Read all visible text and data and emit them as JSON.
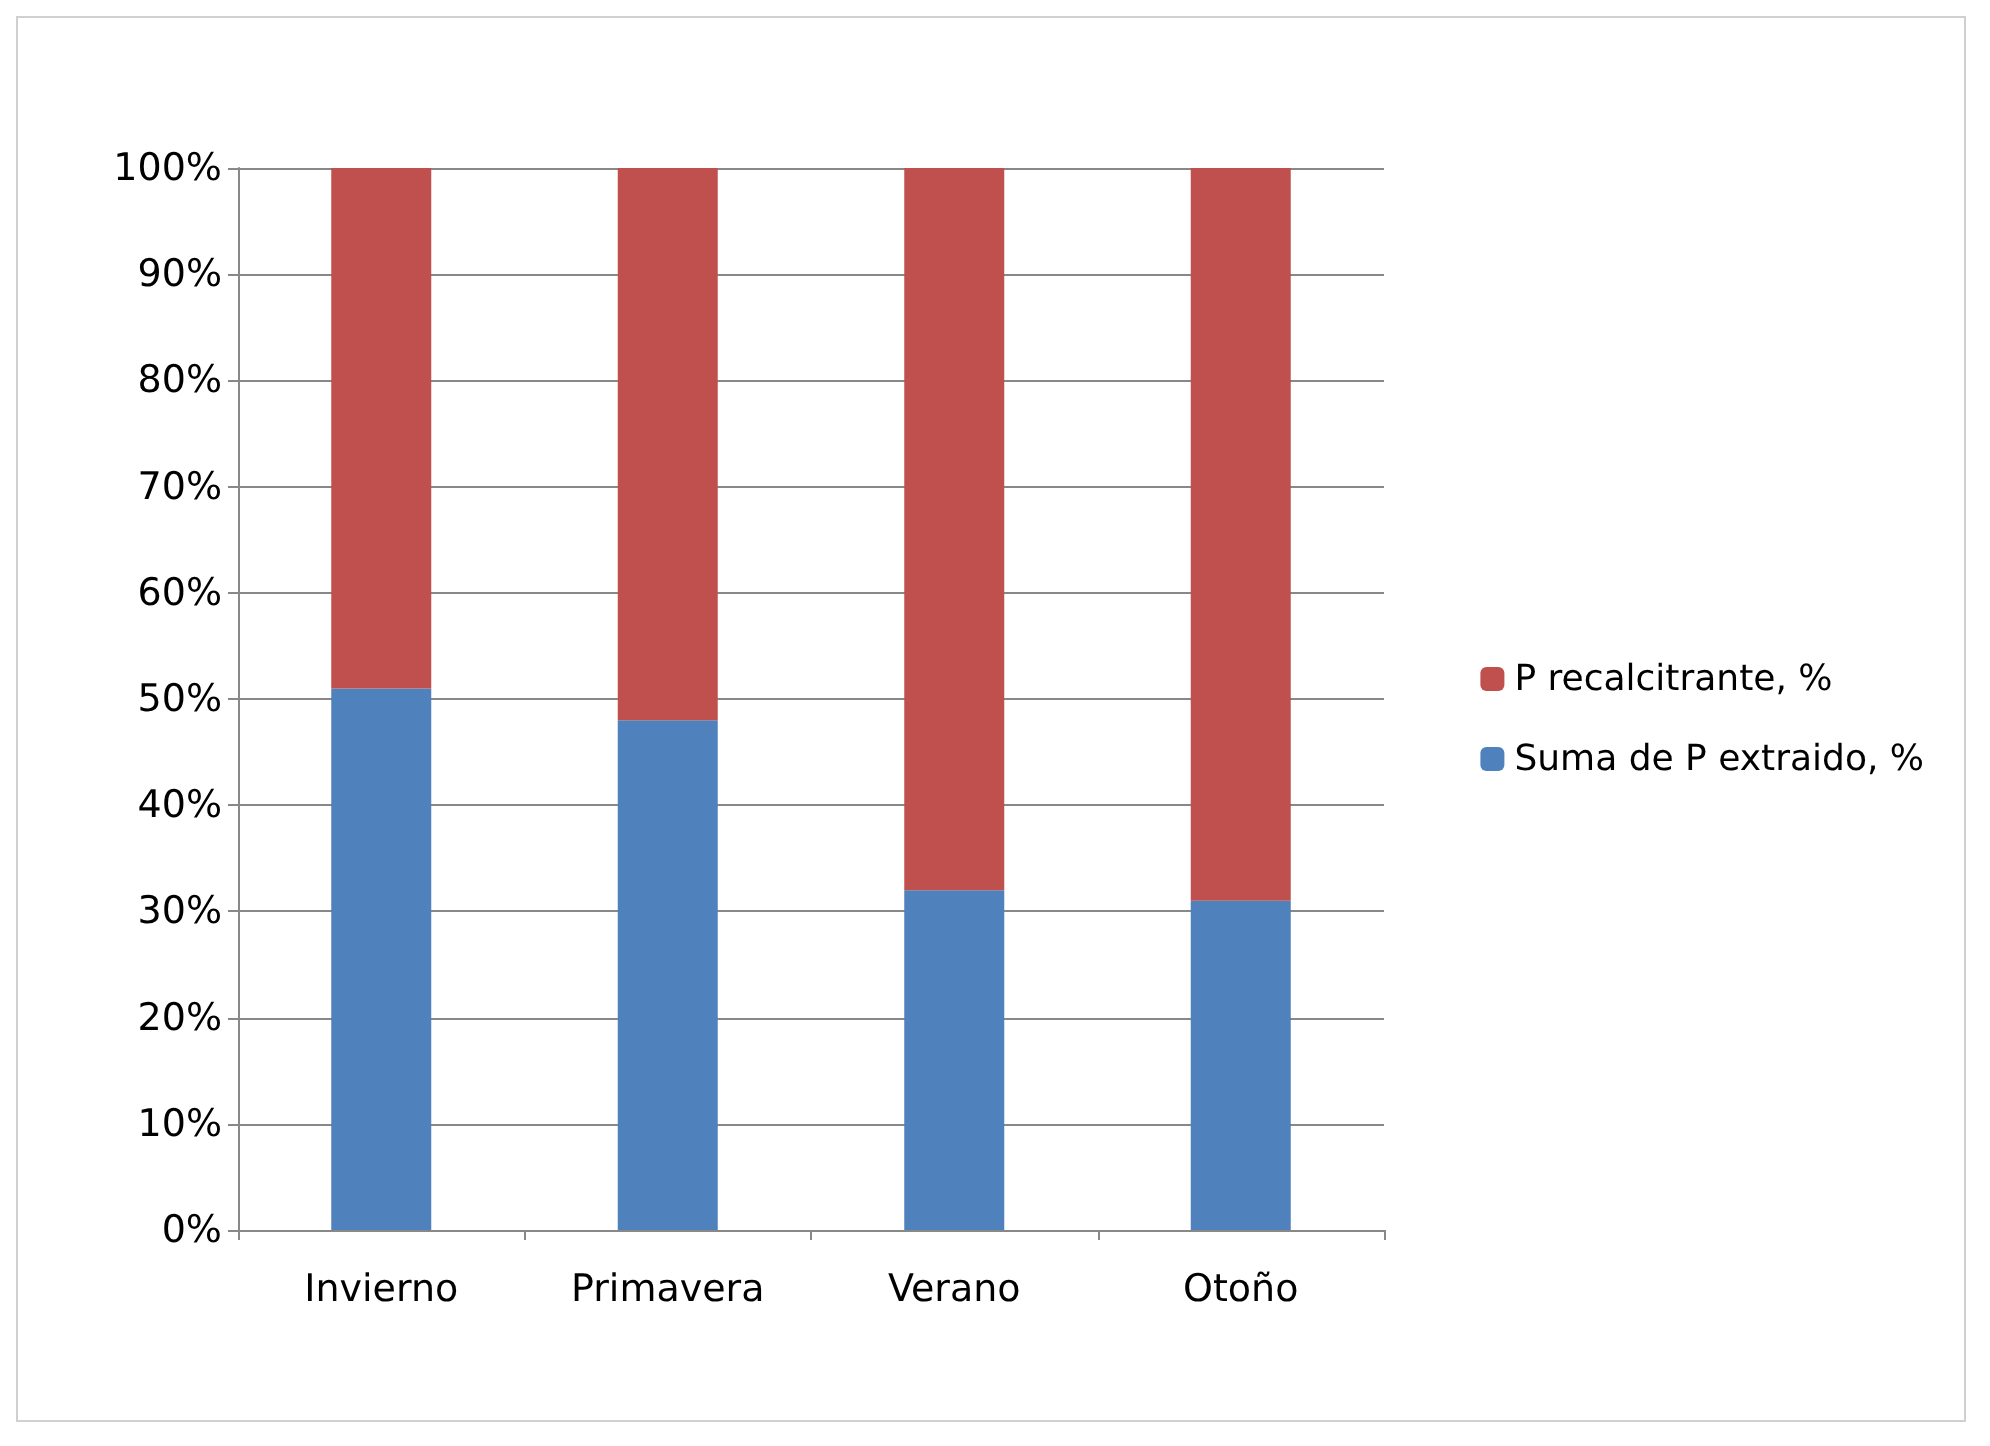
{
  "chart_data": {
    "type": "bar",
    "stacked": true,
    "categories": [
      "Invierno",
      "Primavera",
      "Verano",
      "Otoño"
    ],
    "series": [
      {
        "name": "Suma de P extraido, %",
        "color": "#4f81bd",
        "values": [
          51,
          48,
          32,
          31
        ]
      },
      {
        "name": "P recalcitrante, %",
        "color": "#c0504d",
        "values": [
          49,
          52,
          68,
          69
        ]
      }
    ],
    "ylim": [
      0,
      100
    ],
    "yticks": [
      {
        "value": 0,
        "label": "0%"
      },
      {
        "value": 10,
        "label": "10%"
      },
      {
        "value": 20,
        "label": "20%"
      },
      {
        "value": 30,
        "label": "30%"
      },
      {
        "value": 40,
        "label": "40%"
      },
      {
        "value": 50,
        "label": "50%"
      },
      {
        "value": 60,
        "label": "60%"
      },
      {
        "value": 70,
        "label": "70%"
      },
      {
        "value": 80,
        "label": "80%"
      },
      {
        "value": 90,
        "label": "90%"
      },
      {
        "value": 100,
        "label": "100%"
      }
    ],
    "grid": "y",
    "legend": "right"
  }
}
